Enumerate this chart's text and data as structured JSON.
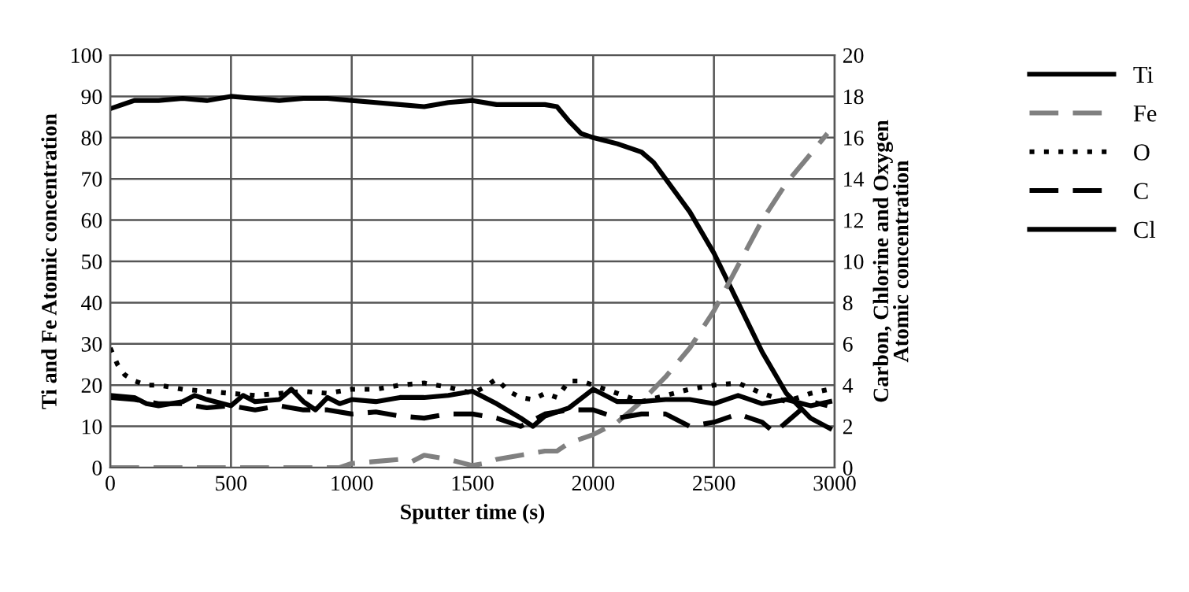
{
  "chart_data": {
    "type": "line",
    "xlabel": "Sputter time (s)",
    "ylabel": "Ti and Fe Atomic concentration",
    "y2label": "Carbon, Chlorine and Oxygen\nAtomic concentration",
    "xlim": [
      0,
      3000
    ],
    "xticks": [
      0,
      500,
      1000,
      1500,
      2000,
      2500,
      3000
    ],
    "ylim": [
      0,
      100
    ],
    "yticks": [
      0,
      10,
      20,
      30,
      40,
      50,
      60,
      70,
      80,
      90,
      100
    ],
    "y2lim": [
      0,
      20
    ],
    "y2ticks": [
      0,
      2,
      4,
      6,
      8,
      10,
      12,
      14,
      16,
      18,
      20
    ],
    "grid": true,
    "legend": "right",
    "marker": "none",
    "series": [
      {
        "name": "Ti",
        "color": "#000000",
        "line_style": "solid",
        "x": [
          0,
          50,
          100,
          200,
          300,
          400,
          500,
          600,
          700,
          800,
          900,
          1000,
          1100,
          1200,
          1300,
          1400,
          1500,
          1600,
          1700,
          1800,
          1850,
          1900,
          1950,
          2000,
          2100,
          2200,
          2250,
          2300,
          2400,
          2500,
          2600,
          2700,
          2800,
          2900,
          2980
        ],
        "values": [
          87,
          88,
          89,
          89,
          89.5,
          89,
          90,
          89.5,
          89,
          89.5,
          89.5,
          89,
          88.5,
          88,
          87.5,
          88.5,
          89,
          88,
          88,
          88,
          87.5,
          84,
          81,
          80,
          78.5,
          76.5,
          74,
          70,
          62,
          52,
          40,
          28,
          18,
          12,
          9.5
        ]
      },
      {
        "name": "Fe",
        "color": "#808080",
        "line_style": "dashed",
        "x": [
          0,
          950,
          1000,
          1100,
          1200,
          1250,
          1300,
          1400,
          1500,
          1550,
          1600,
          1700,
          1800,
          1850,
          1900,
          2000,
          2100,
          2200,
          2300,
          2400,
          2500,
          2600,
          2700,
          2800,
          2900,
          2970
        ],
        "values": [
          0,
          0,
          1,
          1.5,
          2,
          1.5,
          3,
          2,
          0.5,
          1,
          2,
          3,
          4,
          4,
          6,
          8,
          11,
          16,
          22,
          29,
          38,
          49,
          60,
          69,
          76,
          81
        ]
      },
      {
        "name": "O",
        "color": "#000000",
        "line_style": "dotted",
        "axis": "y2",
        "x": [
          0,
          30,
          60,
          100,
          150,
          200,
          300,
          400,
          500,
          600,
          700,
          800,
          900,
          1000,
          1100,
          1200,
          1300,
          1400,
          1500,
          1550,
          1600,
          1650,
          1700,
          1750,
          1800,
          1850,
          1900,
          1950,
          2000,
          2100,
          2200,
          2300,
          2400,
          2500,
          2600,
          2700,
          2800,
          2900,
          2980
        ],
        "values": [
          5.8,
          5,
          4.5,
          4.2,
          4,
          4,
          3.8,
          3.7,
          3.6,
          3.5,
          3.6,
          3.7,
          3.6,
          3.8,
          3.8,
          4,
          4.1,
          3.9,
          3.6,
          3.9,
          4.3,
          3.7,
          3.4,
          3.3,
          3.6,
          3.4,
          4.2,
          4.2,
          4,
          3.6,
          3.2,
          3.5,
          3.8,
          4,
          4.1,
          3.6,
          3.2,
          3.6,
          3.8
        ]
      },
      {
        "name": "C",
        "color": "#000000",
        "line_style": "dashed",
        "axis": "y2",
        "x": [
          0,
          100,
          200,
          300,
          400,
          500,
          600,
          700,
          800,
          900,
          1000,
          1100,
          1200,
          1300,
          1400,
          1500,
          1600,
          1700,
          1800,
          1900,
          2000,
          2100,
          2200,
          2300,
          2400,
          2500,
          2600,
          2700,
          2750,
          2800,
          2900,
          2970
        ],
        "values": [
          3.4,
          3.3,
          3.1,
          3.1,
          2.9,
          3.0,
          2.8,
          3.0,
          2.8,
          2.8,
          2.6,
          2.7,
          2.5,
          2.4,
          2.6,
          2.6,
          2.4,
          2.0,
          2.6,
          2.8,
          2.8,
          2.4,
          2.6,
          2.6,
          2.0,
          2.2,
          2.6,
          2.2,
          1.7,
          2.2,
          3.2,
          3.0
        ]
      },
      {
        "name": "Cl",
        "color": "#000000",
        "line_style": "solid",
        "axis": "y2",
        "x": [
          0,
          100,
          150,
          200,
          300,
          350,
          400,
          500,
          550,
          600,
          700,
          750,
          800,
          850,
          900,
          950,
          1000,
          1100,
          1200,
          1300,
          1400,
          1500,
          1600,
          1700,
          1750,
          1800,
          1900,
          2000,
          2100,
          2200,
          2300,
          2400,
          2500,
          2600,
          2700,
          2800,
          2900,
          2980
        ],
        "values": [
          3.5,
          3.4,
          3.1,
          3.0,
          3.2,
          3.5,
          3.3,
          3.0,
          3.5,
          3.2,
          3.3,
          3.8,
          3.2,
          2.8,
          3.4,
          3.1,
          3.3,
          3.2,
          3.4,
          3.4,
          3.5,
          3.7,
          3.1,
          2.4,
          2.0,
          2.5,
          2.9,
          3.8,
          3.2,
          3.2,
          3.3,
          3.3,
          3.1,
          3.5,
          3.1,
          3.3,
          3.0,
          3.2
        ]
      }
    ]
  }
}
